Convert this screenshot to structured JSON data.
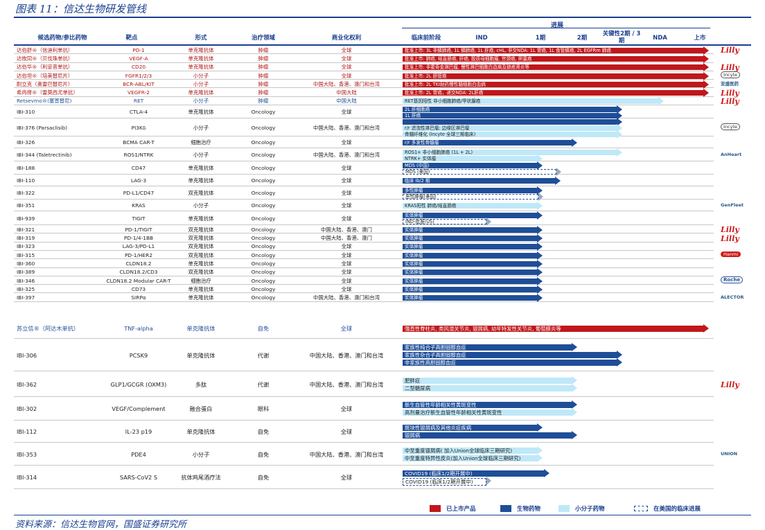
{
  "title": "图表 11：信达生物研发管线",
  "source": "资料来源：信达生物官网，国盛证券研究所",
  "header": {
    "progress": "进展",
    "name": "候选药物/参比药物",
    "target": "靶点",
    "form": "形式",
    "area": "治疗领域",
    "rights": "商业化权利",
    "preclinical": "临床前阶段",
    "ind": "IND",
    "p1": "1期",
    "p2": "2期",
    "p23": "关键性2期 / 3期",
    "nda": "NDA",
    "market": "上市"
  },
  "rows": [
    {
      "name": "达伯舒®（信迪利单抗）",
      "target": "PD-1",
      "form": "单克隆抗体",
      "area": "肿瘤",
      "rights": "全球",
      "cls": "red",
      "bars": [
        {
          "type": "red",
          "text": "批准上市: 3L 非鳞肺癌, 1L 鳞肺癌, 1L 肝癌, cHL, 非交NDA: 1L 胃癌, 1L 食管鳞癌, 2L EGFRm 肺癌",
          "end": 1020
        }
      ],
      "logo": "Lilly"
    },
    {
      "name": "达攸同®（贝伐珠单抗）",
      "target": "VEGF-A",
      "form": "单克隆抗体",
      "area": "肿瘤",
      "rights": "全球",
      "cls": "red",
      "bars": [
        {
          "type": "red",
          "text": "批准上市: 肺癌, 结直肠癌, 肝癌, 胶质母细胞瘤, 宫颈癌, 卵巢癌",
          "end": 1020
        }
      ],
      "logo": ""
    },
    {
      "name": "达伯华®（利妥昔单抗）",
      "target": "CD20",
      "form": "单克隆抗体",
      "area": "肿瘤",
      "rights": "全球",
      "cls": "red",
      "bars": [
        {
          "type": "red",
          "text": "批准上市: 非霍奇金淋巴瘤, 慢性淋巴细胞白血病及狼疮肾炎等",
          "end": 1020
        }
      ],
      "logo": "Lilly"
    },
    {
      "name": "达伯坦®（培美替尼片）",
      "target": "FGFR1/2/3",
      "form": "小分子",
      "area": "肿瘤",
      "rights": "全球",
      "cls": "red",
      "bars": [
        {
          "type": "red",
          "text": "批准上市: 2L 胆管癌",
          "end": 1020
        }
      ],
      "logo": "Incyte"
    },
    {
      "name": "耐立克（奥雷巴替尼片）",
      "target": "BCR-ABL/KIT",
      "form": "小分子",
      "area": "肿瘤",
      "rights": "中国大陆、香港、澳门和台湾",
      "cls": "red",
      "bars": [
        {
          "type": "red",
          "text": "批准上市: 2L TKI耐药慢性髓细胞白血病",
          "end": 1020
        }
      ],
      "logo": "亚盛医药"
    },
    {
      "name": "希冉择®（雷莫西尤单抗）",
      "target": "VEGFR-2",
      "form": "单克隆抗体",
      "area": "肿瘤",
      "rights": "中国大陆",
      "cls": "red",
      "bars": [
        {
          "type": "red",
          "text": "批准上市: 2L 胃癌，递交NDA: 2L肝癌",
          "end": 1020
        }
      ],
      "logo": "Lilly"
    },
    {
      "name": "Retsevmo®(塞普替尼)",
      "target": "RET",
      "form": "小分子",
      "area": "肿瘤",
      "rights": "中国大陆",
      "cls": "blue-name",
      "bars": [
        {
          "type": "light",
          "text": "RET基因阳性 非小细胞肺癌/甲状腺癌",
          "end": 955
        }
      ],
      "logo": "Lilly"
    },
    {
      "name": "IBI-310",
      "target": "CTLA-4",
      "form": "单克隆抗体",
      "area": "Oncology",
      "rights": "全球",
      "bars": [
        {
          "type": "blue",
          "text": "2L 肝细胞癌",
          "end": 895,
          "y": 0
        },
        {
          "type": "blue",
          "text": "1L 肝癌",
          "end": 895,
          "y": 1
        }
      ],
      "logo": ""
    },
    {
      "name": "IBI-376 (Parsaclisib)",
      "target": "PI3Kδ",
      "form": "小分子",
      "area": "中国大陆、香港、澳门和台湾",
      "rights": "中国大陆、香港、澳门和台湾",
      "areaText": "Oncology",
      "bars": [
        {
          "type": "blue",
          "text": "",
          "end": 895,
          "y": 0
        },
        {
          "type": "light",
          "text": "r/r 滤泡性淋巴瘤; 边缘区淋巴瘤",
          "end": 895,
          "y": 1
        },
        {
          "type": "light",
          "text": "骨髓纤维化 (Incyte 全球三期临床)",
          "end": 895,
          "y": 2
        }
      ],
      "logo": "Incyte"
    },
    {
      "name": "IBI-326",
      "target": "BCMA CAR-T",
      "form": "细胞治疗",
      "area": "Oncology",
      "rights": "全球",
      "bars": [
        {
          "type": "blue",
          "text": "r/r 多发性骨髓瘤",
          "end": 830
        }
      ],
      "logo": ""
    },
    {
      "name": "IBI-344 (Taletrectinib)",
      "target": "ROS1/NTRK",
      "form": "小分子",
      "area": "Oncology",
      "rights": "中国大陆、香港、澳门和台湾",
      "bars": [
        {
          "type": "light",
          "text": "ROS1+ 非小细胞肺癌 (1L + 2L)",
          "end": 895,
          "y": 0
        },
        {
          "type": "light",
          "text": "NTRK+ 实体瘤",
          "end": 780,
          "y": 1
        }
      ],
      "logo": "AnHeart"
    },
    {
      "name": "IBI-188",
      "target": "CD47",
      "form": "单克隆抗体",
      "area": "Oncology",
      "rights": "全球",
      "bars": [
        {
          "type": "blue",
          "text": "MDS (中国)",
          "end": 780,
          "y": 0
        },
        {
          "type": "dash",
          "text": "MDS (美国)",
          "end": 806,
          "y": 1
        }
      ],
      "logo": ""
    },
    {
      "name": "IBI-110",
      "target": "LAG-3",
      "form": "单克隆抗体",
      "area": "Oncology",
      "rights": "全球",
      "bars": [
        {
          "type": "blue",
          "text": "临床 Ib/2 期",
          "end": 806
        }
      ],
      "logo": ""
    },
    {
      "name": "IBI-322",
      "target": "PD-L1/CD47",
      "form": "双克隆抗体",
      "area": "Oncology",
      "rights": "全球",
      "bars": [
        {
          "type": "blue",
          "text": "多性肿瘤",
          "end": 780,
          "y": 0
        },
        {
          "type": "dash",
          "text": "恶性肿瘤(美国)",
          "end": 780,
          "y": 1
        }
      ],
      "logo": ""
    },
    {
      "name": "IBI-351",
      "target": "KRAS",
      "form": "小分子",
      "area": "Oncology",
      "rights": "全球",
      "bars": [
        {
          "type": "light",
          "text": "KRAS阳性 肺癌/结直肠癌",
          "end": 780
        }
      ],
      "logo": "GenFleet"
    },
    {
      "name": "IBI-939",
      "target": "TIGIT",
      "form": "单克隆抗体",
      "area": "Oncology",
      "rights": "全球",
      "bars": [
        {
          "type": "blue",
          "text": "实体肿瘤",
          "end": 780,
          "y": 0
        },
        {
          "type": "dash",
          "text": "IND-批准(US)",
          "end": 705,
          "y": 1
        }
      ],
      "logo": ""
    },
    {
      "name": "IBI-321",
      "target": "PD-1/TIGIT",
      "form": "双克隆抗体",
      "area": "Oncology",
      "rights": "中国大陆、香港、澳门",
      "bars": [
        {
          "type": "blue",
          "text": "实体肿瘤",
          "end": 780
        }
      ],
      "logo": "Lilly"
    },
    {
      "name": "IBI-319",
      "target": "PD-1/4-1BB",
      "form": "双克隆抗体",
      "area": "Oncology",
      "rights": "中国大陆、香港、澳门",
      "bars": [
        {
          "type": "blue",
          "text": "实体肿瘤",
          "end": 780
        }
      ],
      "logo": "Lilly"
    },
    {
      "name": "IBI-323",
      "target": "LAG-3/PD-L1",
      "form": "双克隆抗体",
      "area": "Oncology",
      "rights": "全球",
      "bars": [
        {
          "type": "blue",
          "text": "实体肿瘤",
          "end": 780
        }
      ],
      "logo": ""
    },
    {
      "name": "IBI-315",
      "target": "PD-1/HER2",
      "form": "双克隆抗体",
      "area": "Oncology",
      "rights": "全球",
      "bars": [
        {
          "type": "blue",
          "text": "实体肿瘤",
          "end": 780
        }
      ],
      "logo": "Hanmi"
    },
    {
      "name": "IBI-360",
      "target": "CLDN18.2",
      "form": "单克隆抗体",
      "area": "Oncology",
      "rights": "全球",
      "bars": [
        {
          "type": "blue",
          "text": "实体肿瘤",
          "end": 780
        }
      ],
      "logo": ""
    },
    {
      "name": "IBI-389",
      "target": "CLDN18.2/CD3",
      "form": "双克隆抗体",
      "area": "Oncology",
      "rights": "全球",
      "bars": [
        {
          "type": "blue",
          "text": "实体肿瘤",
          "end": 780
        }
      ],
      "logo": ""
    },
    {
      "name": "IBI-346",
      "target": "CLDN18.2 Modular CAR-T",
      "form": "细胞治疗",
      "area": "Oncology",
      "rights": "全球",
      "bars": [
        {
          "type": "blue",
          "text": "实体肿瘤",
          "end": 780
        }
      ],
      "logo": "Roche"
    },
    {
      "name": "IBI-325",
      "target": "CD73",
      "form": "单克隆抗体",
      "area": "Oncology",
      "rights": "全球",
      "bars": [
        {
          "type": "blue",
          "text": "实体肿瘤",
          "end": 780
        }
      ],
      "logo": ""
    },
    {
      "name": "IBI-397",
      "target": "SIRPα",
      "form": "单克隆抗体",
      "area": "Oncology",
      "rights": "中国大陆、香港、澳门和台湾",
      "bars": [
        {
          "type": "blue",
          "text": "实体肿瘤",
          "end": 780
        }
      ],
      "logo": "ALECTOR"
    }
  ],
  "tallRows": [
    {
      "name": "苏立信®（阿达木单抗）",
      "target": "TNF-alpha",
      "form": "单克隆抗体",
      "area": "自免",
      "rights": "全球",
      "cls": "blue-name",
      "bars": [
        {
          "type": "red",
          "text": "强直性脊柱炎, 类风湿关节炎, 银屑病, 幼年特发性关节炎, 葡萄膜炎等",
          "end": 1020,
          "y": 0
        }
      ],
      "logo": ""
    },
    {
      "name": "IBI-306",
      "target": "PCSK9",
      "form": "单克隆抗体",
      "area": "代谢",
      "rights": "中国大陆、香港、澳门和台湾",
      "bars": [
        {
          "type": "blue",
          "text": "家族性纯合子高胆固醇血症",
          "end": 830,
          "y": 0
        },
        {
          "type": "blue",
          "text": "家族性杂合子高胆固醇血症",
          "end": 895,
          "y": 1
        },
        {
          "type": "blue",
          "text": "非家族性高胆固醇血症",
          "end": 895,
          "y": 2
        }
      ],
      "logo": ""
    },
    {
      "name": "IBI-362",
      "target": "GLP1/GCGR (OXM3)",
      "form": "多肽",
      "area": "代谢",
      "rights": "中国大陆、香港、澳门和台湾",
      "bars": [
        {
          "type": "light",
          "text": "肥胖症",
          "end": 830,
          "y": 0
        },
        {
          "type": "light",
          "text": "二型糖尿病",
          "end": 830,
          "y": 1
        }
      ],
      "logo": "Lilly"
    },
    {
      "name": "IBI-302",
      "target": "VEGF/Complement",
      "form": "融合蛋白",
      "area": "眼科",
      "rights": "全球",
      "bars": [
        {
          "type": "blue",
          "text": "新生血管性年龄相关性黄斑变性",
          "end": 830,
          "y": 0
        },
        {
          "type": "light",
          "text": "高剂量治疗新生血管性年龄相关性黄斑变性",
          "end": 830,
          "y": 1
        }
      ],
      "logo": ""
    },
    {
      "name": "IBI-112",
      "target": "IL-23 p19",
      "form": "单克隆抗体",
      "area": "自免",
      "rights": "全球",
      "bars": [
        {
          "type": "blue",
          "text": "斑块性银屑病及其他炎症疾病",
          "end": 780,
          "y": 0
        },
        {
          "type": "blue",
          "text": "银屑病",
          "end": 830,
          "y": 1
        }
      ],
      "logo": ""
    },
    {
      "name": "IBI-353",
      "target": "PDE4",
      "form": "小分子",
      "area": "自免",
      "rights": "中国大陆、香港、澳门和台湾",
      "bars": [
        {
          "type": "light",
          "text": "中至重度银屑病( 加入Union全球临床三期研究)",
          "end": 780,
          "y": 0
        },
        {
          "type": "light",
          "text": "中至重度特异性皮炎(加入Union全球临床三期研究)",
          "end": 780,
          "y": 1
        }
      ],
      "logo": "UNION"
    },
    {
      "name": "IBI-314",
      "target": "SARS-CoV2 S",
      "form": "抗体鸡尾酒疗法",
      "area": "自免",
      "rights": "全球",
      "bars": [
        {
          "type": "blue",
          "text": "COVID19 (临床1/2期开展中)",
          "end": 790,
          "y": 0
        },
        {
          "type": "dash",
          "text": "COVID19 (临床1/2期开展中)",
          "end": 705,
          "y": 1
        }
      ],
      "logo": ""
    }
  ],
  "legend": {
    "marketed": "已上市产品",
    "biologic": "生物药物",
    "small": "小分子药物",
    "us": "在美国的临床进展"
  },
  "colors": {
    "navy": "#1a3f8f",
    "red": "#c0171b",
    "blue": "#1f4e98",
    "light": "#bfe8f8"
  }
}
